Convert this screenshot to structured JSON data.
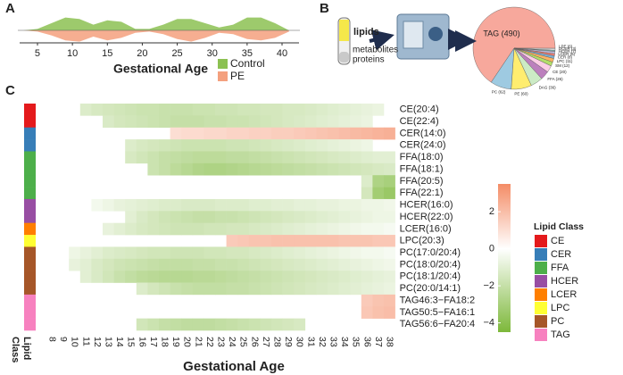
{
  "panel_labels": [
    "A",
    "B",
    "C"
  ],
  "chart_data": [
    {
      "type": "violin",
      "xlabel": "Gestational Age",
      "x": [
        3,
        5,
        7,
        9,
        11,
        13,
        15,
        17,
        19,
        21,
        23,
        25,
        27,
        29,
        31,
        33,
        35,
        37,
        39,
        41
      ],
      "xlim": [
        2,
        43
      ],
      "xticks": [
        5,
        10,
        15,
        20,
        25,
        30,
        35,
        40
      ],
      "series": [
        {
          "name": "Control",
          "color": "#8cc152",
          "values": [
            0,
            0.1,
            0.5,
            0.9,
            0.8,
            0.4,
            0.7,
            0.6,
            0.1,
            0.1,
            0.4,
            0.8,
            0.8,
            0.5,
            0.2,
            0.4,
            0.9,
            0.9,
            0.5,
            0
          ]
        },
        {
          "name": "PE",
          "color": "#f4a07e",
          "values": [
            0,
            0.1,
            0.4,
            0.8,
            0.9,
            0.5,
            0.8,
            0.6,
            0.2,
            0.1,
            0.3,
            0.7,
            0.9,
            0.6,
            0.2,
            0.3,
            0.7,
            0.8,
            0.6,
            0.1
          ]
        }
      ]
    },
    {
      "type": "pie",
      "sample_labels": [
        "lipids",
        "metabolites",
        "proteins"
      ],
      "categories": [
        "TAG",
        "LPE",
        "DCER",
        "HCER",
        "LCER",
        "CER",
        "LPC",
        "SM",
        "CE",
        "FFA",
        "DAG",
        "PE",
        "PC"
      ],
      "values": [
        490,
        6,
        3,
        7,
        6,
        8,
        11,
        12,
        20,
        26,
        36,
        60,
        62
      ],
      "value_labels": [
        "TAG (490)",
        "LPE (6)",
        "DCER (3)",
        "HCER (7)",
        "LCER (6)",
        "CER (8)",
        "LPC (11)",
        "SM (12)",
        "CE (20)",
        "FFA (26)",
        "DAG (36)",
        "PE (60)",
        "PC (62)"
      ],
      "colors": [
        "#f7a89c",
        "#d9d9d9",
        "#8dd3c7",
        "#bebada",
        "#fb8072",
        "#80b1d3",
        "#fdb462",
        "#b3de69",
        "#fccde5",
        "#bc80bd",
        "#ccebc5",
        "#ffed6f",
        "#9ecae1"
      ]
    },
    {
      "type": "heatmap",
      "xlabel": "Gestational Age",
      "row_axis_label": [
        "Lipid",
        "Class"
      ],
      "x": [
        8,
        9,
        10,
        11,
        12,
        13,
        14,
        15,
        16,
        17,
        18,
        19,
        20,
        21,
        22,
        23,
        24,
        25,
        26,
        27,
        28,
        29,
        30,
        31,
        32,
        33,
        34,
        35,
        36,
        37,
        38
      ],
      "y": [
        "CE(20:4)",
        "CE(22:4)",
        "CER(14:0)",
        "CER(24:0)",
        "FFA(18:0)",
        "FFA(18:1)",
        "FFA(20:5)",
        "FFA(22:1)",
        "HCER(16:0)",
        "HCER(22:0)",
        "LCER(16:0)",
        "LPC(20:3)",
        "PC(17:0/20:4)",
        "PC(18:0/20:4)",
        "PC(18:1/20:4)",
        "PC(20:0/14:1)",
        "TAG46:3−FA18:2",
        "TAG50:5−FA16:1",
        "TAG56:6−FA20:4"
      ],
      "row_classes": [
        "CE",
        "CE",
        "CER",
        "CER",
        "FFA",
        "FFA",
        "FFA",
        "FFA",
        "HCER",
        "HCER",
        "LCER",
        "LPC",
        "PC",
        "PC",
        "PC",
        "PC",
        "TAG",
        "TAG",
        "TAG"
      ],
      "z": [
        [
          null,
          null,
          null,
          -1.2,
          -1.4,
          -1.5,
          -1.6,
          -1.7,
          -1.8,
          -1.8,
          -1.9,
          -1.9,
          -1.9,
          -1.8,
          -1.8,
          -1.7,
          -1.7,
          -1.6,
          -1.6,
          -1.5,
          -1.5,
          -1.4,
          -1.4,
          -1.3,
          -1.2,
          -1.1,
          -1.0,
          -0.9,
          -0.8,
          -0.7,
          null
        ],
        [
          null,
          null,
          null,
          null,
          null,
          -1.3,
          -1.5,
          -1.6,
          -1.7,
          -1.8,
          -1.9,
          -2.0,
          -2.0,
          -2.0,
          -1.9,
          -1.9,
          -1.8,
          -1.8,
          -1.7,
          -1.6,
          -1.5,
          -1.4,
          -1.3,
          -1.2,
          -1.1,
          -1.0,
          -0.9,
          -0.8,
          -0.7,
          null,
          null
        ],
        [
          null,
          null,
          null,
          null,
          null,
          null,
          null,
          null,
          null,
          null,
          null,
          1.0,
          1.1,
          1.1,
          1.2,
          1.2,
          1.3,
          1.3,
          1.4,
          1.4,
          1.5,
          1.5,
          1.6,
          1.7,
          1.8,
          1.9,
          2.0,
          2.1,
          2.2,
          2.3,
          2.4
        ],
        [
          null,
          null,
          null,
          null,
          null,
          null,
          null,
          -1.2,
          -1.4,
          -1.5,
          -1.6,
          -1.7,
          -1.8,
          -1.8,
          -1.8,
          -1.8,
          -1.7,
          -1.7,
          -1.6,
          -1.5,
          -1.4,
          -1.3,
          -1.2,
          -1.1,
          -1.0,
          -0.9,
          -0.8,
          -0.7,
          -0.6,
          null,
          null
        ],
        [
          null,
          null,
          null,
          null,
          null,
          null,
          null,
          -1.4,
          -1.6,
          -1.8,
          -2.0,
          -2.1,
          -2.2,
          -2.3,
          -2.3,
          -2.3,
          -2.2,
          -2.2,
          -2.1,
          -2.0,
          -1.9,
          -1.8,
          -1.7,
          -1.6,
          -1.5,
          -1.4,
          -1.3,
          -1.2,
          -1.1,
          -1.0,
          -1.0
        ],
        [
          null,
          null,
          null,
          null,
          null,
          null,
          null,
          null,
          null,
          -1.8,
          -2.0,
          -2.3,
          -2.5,
          -2.7,
          -2.8,
          -2.8,
          -2.7,
          -2.6,
          -2.5,
          -2.4,
          -2.3,
          -2.2,
          -2.1,
          -2.0,
          -1.9,
          -1.8,
          -1.7,
          -1.6,
          -1.5,
          -1.4,
          -1.3
        ],
        [
          null,
          null,
          null,
          null,
          null,
          null,
          null,
          null,
          null,
          null,
          null,
          null,
          null,
          null,
          null,
          null,
          null,
          null,
          null,
          null,
          null,
          null,
          null,
          null,
          null,
          null,
          null,
          null,
          -1.2,
          -2.8,
          -3.0
        ],
        [
          null,
          null,
          null,
          null,
          null,
          null,
          null,
          null,
          null,
          null,
          null,
          null,
          null,
          null,
          null,
          null,
          null,
          null,
          null,
          null,
          null,
          null,
          null,
          null,
          null,
          null,
          null,
          null,
          -1.5,
          -3.2,
          -3.5
        ],
        [
          null,
          null,
          null,
          null,
          -0.4,
          -0.6,
          -0.8,
          -0.9,
          -1.0,
          -1.1,
          -1.2,
          -1.2,
          -1.3,
          -1.3,
          -1.3,
          -1.2,
          -1.2,
          -1.2,
          -1.1,
          -1.1,
          -1.0,
          -1.0,
          -0.9,
          -0.9,
          -0.8,
          -0.8,
          -0.7,
          -0.7,
          -0.6,
          -0.6,
          -0.5
        ],
        [
          null,
          null,
          null,
          null,
          null,
          null,
          null,
          -1.0,
          -1.3,
          -1.5,
          -1.7,
          -1.8,
          -1.9,
          -2.0,
          -2.0,
          -1.9,
          -1.9,
          -1.8,
          -1.7,
          -1.6,
          -1.5,
          -1.4,
          -1.3,
          -1.2,
          -1.1,
          -1.0,
          -0.9,
          -0.8,
          -0.7,
          -0.6,
          -0.6
        ],
        [
          null,
          null,
          null,
          null,
          null,
          -0.8,
          -1.0,
          -1.2,
          -1.4,
          -1.5,
          -1.6,
          -1.7,
          -1.7,
          -1.7,
          -1.6,
          -1.6,
          -1.5,
          -1.5,
          -1.4,
          -1.3,
          -1.2,
          -1.1,
          -1.0,
          -0.9,
          -0.8,
          -0.7,
          -0.6,
          -0.5,
          -0.4,
          -0.4,
          -0.3
        ],
        [
          null,
          null,
          null,
          null,
          null,
          null,
          null,
          null,
          null,
          null,
          null,
          null,
          null,
          null,
          null,
          null,
          1.6,
          1.7,
          1.8,
          1.8,
          1.9,
          1.9,
          1.9,
          1.9,
          1.9,
          1.9,
          1.8,
          1.8,
          1.8,
          1.7,
          1.7
        ],
        [
          null,
          null,
          -0.6,
          -0.8,
          -1.0,
          -1.2,
          -1.3,
          -1.4,
          -1.5,
          -1.6,
          -1.6,
          -1.7,
          -1.7,
          -1.7,
          -1.6,
          -1.6,
          -1.5,
          -1.5,
          -1.4,
          -1.3,
          -1.2,
          -1.1,
          -1.0,
          -0.9,
          -0.8,
          -0.7,
          -0.6,
          -0.5,
          -0.4,
          -0.4,
          -0.3
        ],
        [
          null,
          null,
          -0.8,
          -1.0,
          -1.3,
          -1.5,
          -1.7,
          -1.8,
          -1.9,
          -2.0,
          -2.1,
          -2.1,
          -2.1,
          -2.0,
          -2.0,
          -1.9,
          -1.9,
          -1.8,
          -1.7,
          -1.6,
          -1.5,
          -1.4,
          -1.3,
          -1.2,
          -1.1,
          -1.0,
          -0.9,
          -0.8,
          -0.7,
          -0.6,
          -0.5
        ],
        [
          null,
          null,
          null,
          -1.0,
          -1.3,
          -1.6,
          -1.9,
          -2.1,
          -2.3,
          -2.4,
          -2.5,
          -2.5,
          -2.5,
          -2.4,
          -2.4,
          -2.3,
          -2.2,
          -2.1,
          -2.0,
          -1.9,
          -1.8,
          -1.7,
          -1.6,
          -1.5,
          -1.4,
          -1.3,
          -1.2,
          -1.1,
          -1.0,
          -0.9,
          -0.8
        ],
        [
          null,
          null,
          null,
          null,
          null,
          null,
          null,
          null,
          -1.2,
          -1.5,
          -1.7,
          -1.9,
          -2.0,
          -2.1,
          -2.1,
          -2.1,
          -2.0,
          -2.0,
          -1.9,
          -1.8,
          -1.7,
          -1.6,
          -1.5,
          -1.4,
          -1.3,
          -1.2,
          -1.1,
          -1.0,
          -0.9,
          -0.8,
          -0.7
        ],
        [
          null,
          null,
          null,
          null,
          null,
          null,
          null,
          null,
          null,
          null,
          null,
          null,
          null,
          null,
          null,
          null,
          null,
          null,
          null,
          null,
          null,
          null,
          null,
          null,
          null,
          null,
          null,
          null,
          1.6,
          1.8,
          1.9
        ],
        [
          null,
          null,
          null,
          null,
          null,
          null,
          null,
          null,
          null,
          null,
          null,
          null,
          null,
          null,
          null,
          null,
          null,
          null,
          null,
          null,
          null,
          null,
          null,
          null,
          null,
          null,
          null,
          null,
          1.7,
          1.9,
          2.0
        ],
        [
          null,
          null,
          null,
          null,
          null,
          null,
          null,
          null,
          -1.6,
          -1.8,
          -2.0,
          -2.1,
          -2.2,
          -2.2,
          -2.2,
          -2.1,
          -2.0,
          -1.9,
          -1.8,
          -1.7,
          -1.6,
          -1.5,
          -1.4,
          null,
          null,
          null,
          null,
          null,
          null,
          null,
          null
        ]
      ],
      "clim": [
        -4.5,
        3.5
      ],
      "colorscale": [
        "#7db83a",
        "#ffffff",
        "#f48c66"
      ],
      "colorbar_ticks": [
        {
          "value": 2,
          "label": "2"
        },
        {
          "value": 0,
          "label": "0"
        },
        {
          "value": -2,
          "label": "−2"
        },
        {
          "value": -4,
          "label": "−4"
        }
      ],
      "legend_title": "Lipid Class",
      "classes": [
        {
          "name": "CE",
          "color": "#e41a1c"
        },
        {
          "name": "CER",
          "color": "#377eb8"
        },
        {
          "name": "FFA",
          "color": "#4daf4a"
        },
        {
          "name": "HCER",
          "color": "#984ea3"
        },
        {
          "name": "LCER",
          "color": "#ff7f00"
        },
        {
          "name": "LPC",
          "color": "#ffff33"
        },
        {
          "name": "PC",
          "color": "#a65628"
        },
        {
          "name": "TAG",
          "color": "#f781bf"
        }
      ]
    }
  ]
}
